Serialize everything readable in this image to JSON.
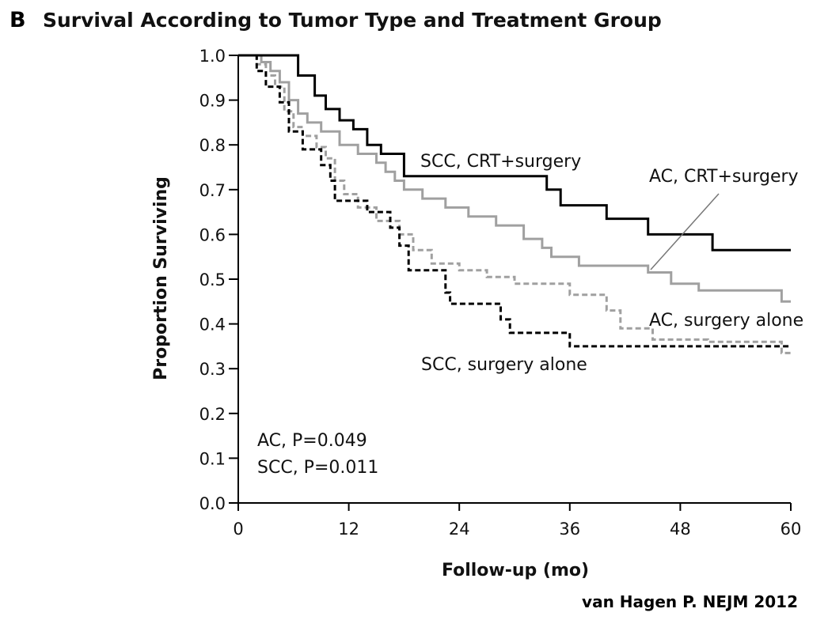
{
  "figure": {
    "panel_letter": "B",
    "citation": "van Hagen P. NEJM 2012"
  },
  "chart_data": {
    "type": "line",
    "subtype": "kaplan-meier-step",
    "title": "Survival According to Tumor Type and Treatment Group",
    "xlabel": "Follow-up (mo)",
    "ylabel": "Proportion Surviving",
    "xlim": [
      0,
      60
    ],
    "ylim": [
      0,
      1
    ],
    "xticks": [
      0,
      12,
      24,
      36,
      48,
      60
    ],
    "yticks": [
      0.0,
      0.1,
      0.2,
      0.3,
      0.4,
      0.5,
      0.6,
      0.7,
      0.8,
      0.9,
      1.0
    ],
    "xtick_labels": [
      "0",
      "12",
      "24",
      "36",
      "48",
      "60"
    ],
    "ytick_labels": [
      "0.0",
      "0.1",
      "0.2",
      "0.3",
      "0.4",
      "0.5",
      "0.6",
      "0.7",
      "0.8",
      "0.9",
      "1.0"
    ],
    "grid": false,
    "legend": "none (direct labels)",
    "annotations": [
      "AC, P=0.049",
      "SCC, P=0.011"
    ],
    "series": [
      {
        "name": "SCC, CRT+surgery",
        "color": "#000000",
        "dash": "solid",
        "points": [
          [
            0,
            1.0
          ],
          [
            6.5,
            1.0
          ],
          [
            6.5,
            0.955
          ],
          [
            8.3,
            0.955
          ],
          [
            8.3,
            0.91
          ],
          [
            9.5,
            0.91
          ],
          [
            9.5,
            0.88
          ],
          [
            11,
            0.88
          ],
          [
            11,
            0.855
          ],
          [
            12.5,
            0.855
          ],
          [
            12.5,
            0.835
          ],
          [
            14,
            0.835
          ],
          [
            14,
            0.8
          ],
          [
            15.5,
            0.8
          ],
          [
            15.5,
            0.78
          ],
          [
            18,
            0.78
          ],
          [
            18,
            0.73
          ],
          [
            33.5,
            0.73
          ],
          [
            33.5,
            0.7
          ],
          [
            35,
            0.7
          ],
          [
            35,
            0.665
          ],
          [
            40,
            0.665
          ],
          [
            40,
            0.635
          ],
          [
            44.5,
            0.635
          ],
          [
            44.5,
            0.6
          ],
          [
            51.5,
            0.6
          ],
          [
            51.5,
            0.565
          ],
          [
            60,
            0.565
          ]
        ]
      },
      {
        "name": "AC, CRT+surgery",
        "color": "#a0a0a0",
        "dash": "solid",
        "points": [
          [
            0,
            1.0
          ],
          [
            2.5,
            1.0
          ],
          [
            2.5,
            0.985
          ],
          [
            3.5,
            0.985
          ],
          [
            3.5,
            0.965
          ],
          [
            4.5,
            0.965
          ],
          [
            4.5,
            0.94
          ],
          [
            5.5,
            0.94
          ],
          [
            5.5,
            0.9
          ],
          [
            6.5,
            0.9
          ],
          [
            6.5,
            0.87
          ],
          [
            7.5,
            0.87
          ],
          [
            7.5,
            0.85
          ],
          [
            9,
            0.85
          ],
          [
            9,
            0.83
          ],
          [
            11,
            0.83
          ],
          [
            11,
            0.8
          ],
          [
            13,
            0.8
          ],
          [
            13,
            0.78
          ],
          [
            15,
            0.78
          ],
          [
            15,
            0.76
          ],
          [
            16,
            0.76
          ],
          [
            16,
            0.74
          ],
          [
            17,
            0.74
          ],
          [
            17,
            0.72
          ],
          [
            18,
            0.72
          ],
          [
            18,
            0.7
          ],
          [
            20,
            0.7
          ],
          [
            20,
            0.68
          ],
          [
            22.5,
            0.68
          ],
          [
            22.5,
            0.66
          ],
          [
            25,
            0.66
          ],
          [
            25,
            0.64
          ],
          [
            28,
            0.64
          ],
          [
            28,
            0.62
          ],
          [
            31,
            0.62
          ],
          [
            31,
            0.59
          ],
          [
            33,
            0.59
          ],
          [
            33,
            0.57
          ],
          [
            34,
            0.57
          ],
          [
            34,
            0.55
          ],
          [
            37,
            0.55
          ],
          [
            37,
            0.53
          ],
          [
            44.5,
            0.53
          ],
          [
            44.5,
            0.515
          ],
          [
            47,
            0.515
          ],
          [
            47,
            0.49
          ],
          [
            50,
            0.49
          ],
          [
            50,
            0.475
          ],
          [
            59,
            0.475
          ],
          [
            59,
            0.45
          ],
          [
            60,
            0.45
          ]
        ]
      },
      {
        "name": "AC, surgery alone",
        "color": "#a0a0a0",
        "dash": "dashed",
        "points": [
          [
            0,
            1.0
          ],
          [
            2,
            1.0
          ],
          [
            2,
            0.98
          ],
          [
            3,
            0.98
          ],
          [
            3,
            0.955
          ],
          [
            4,
            0.955
          ],
          [
            4,
            0.93
          ],
          [
            5,
            0.93
          ],
          [
            5,
            0.875
          ],
          [
            6,
            0.875
          ],
          [
            6,
            0.84
          ],
          [
            7,
            0.84
          ],
          [
            7,
            0.82
          ],
          [
            8.5,
            0.82
          ],
          [
            8.5,
            0.795
          ],
          [
            9.5,
            0.795
          ],
          [
            9.5,
            0.77
          ],
          [
            10.5,
            0.77
          ],
          [
            10.5,
            0.72
          ],
          [
            11.5,
            0.72
          ],
          [
            11.5,
            0.69
          ],
          [
            13,
            0.69
          ],
          [
            13,
            0.66
          ],
          [
            15,
            0.66
          ],
          [
            15,
            0.63
          ],
          [
            17.5,
            0.63
          ],
          [
            17.5,
            0.6
          ],
          [
            19,
            0.6
          ],
          [
            19,
            0.565
          ],
          [
            21,
            0.565
          ],
          [
            21,
            0.535
          ],
          [
            24,
            0.535
          ],
          [
            24,
            0.52
          ],
          [
            27,
            0.52
          ],
          [
            27,
            0.505
          ],
          [
            30,
            0.505
          ],
          [
            30,
            0.49
          ],
          [
            36,
            0.49
          ],
          [
            36,
            0.465
          ],
          [
            40,
            0.465
          ],
          [
            40,
            0.43
          ],
          [
            41.5,
            0.43
          ],
          [
            41.5,
            0.39
          ],
          [
            45,
            0.39
          ],
          [
            45,
            0.365
          ],
          [
            51,
            0.365
          ],
          [
            51,
            0.36
          ],
          [
            59,
            0.36
          ],
          [
            59,
            0.335
          ],
          [
            60,
            0.335
          ]
        ]
      },
      {
        "name": "SCC, surgery alone",
        "color": "#000000",
        "dash": "dashed",
        "points": [
          [
            0,
            1.0
          ],
          [
            2,
            1.0
          ],
          [
            2,
            0.965
          ],
          [
            3,
            0.965
          ],
          [
            3,
            0.93
          ],
          [
            4.5,
            0.93
          ],
          [
            4.5,
            0.895
          ],
          [
            5.5,
            0.895
          ],
          [
            5.5,
            0.83
          ],
          [
            7,
            0.83
          ],
          [
            7,
            0.79
          ],
          [
            9,
            0.79
          ],
          [
            9,
            0.755
          ],
          [
            10,
            0.755
          ],
          [
            10,
            0.72
          ],
          [
            10.5,
            0.72
          ],
          [
            10.5,
            0.675
          ],
          [
            14,
            0.675
          ],
          [
            14,
            0.65
          ],
          [
            16.5,
            0.65
          ],
          [
            16.5,
            0.615
          ],
          [
            17.5,
            0.615
          ],
          [
            17.5,
            0.575
          ],
          [
            18.5,
            0.575
          ],
          [
            18.5,
            0.52
          ],
          [
            22.5,
            0.52
          ],
          [
            22.5,
            0.47
          ],
          [
            23,
            0.47
          ],
          [
            23,
            0.445
          ],
          [
            28.5,
            0.445
          ],
          [
            28.5,
            0.41
          ],
          [
            29.5,
            0.41
          ],
          [
            29.5,
            0.38
          ],
          [
            36,
            0.38
          ],
          [
            36,
            0.35
          ],
          [
            60,
            0.35
          ]
        ]
      }
    ]
  }
}
